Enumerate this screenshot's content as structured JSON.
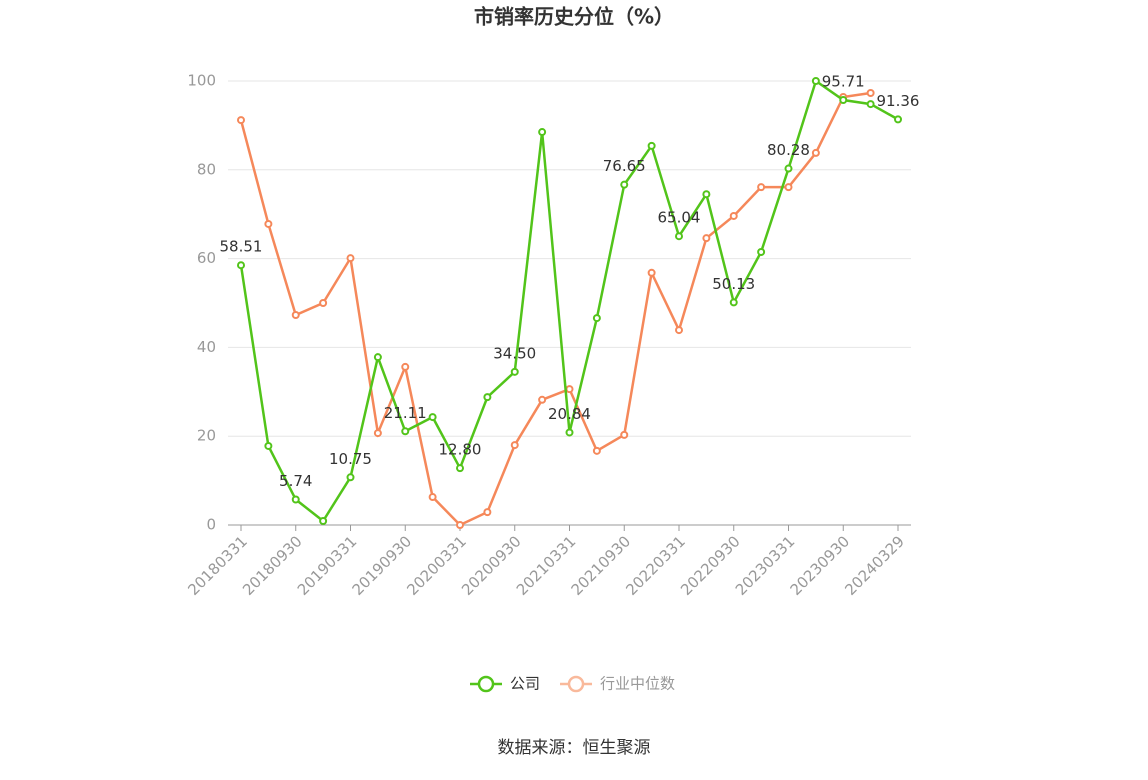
{
  "chart_data": {
    "type": "line",
    "title": "市销率历史分位（%）",
    "source": "数据来源：恒生聚源",
    "categories": [
      "20180331",
      null,
      "20180930",
      null,
      "20190331",
      null,
      "20190930",
      null,
      "20200331",
      null,
      "20200930",
      null,
      "20210331",
      null,
      "20210930",
      null,
      "20220331",
      null,
      "20220930",
      null,
      "20230331",
      null,
      "20230930",
      null,
      "20240329"
    ],
    "series": [
      {
        "name": "公司",
        "color": "#52c41a",
        "values": [
          58.51,
          17.8,
          5.74,
          0.9,
          10.75,
          37.8,
          21.11,
          24.3,
          12.8,
          28.8,
          34.5,
          88.5,
          20.84,
          46.6,
          76.65,
          85.4,
          65.04,
          74.5,
          50.13,
          61.5,
          80.28,
          100,
          95.71,
          94.8,
          91.36
        ],
        "value_labels": [
          "58.51",
          null,
          "5.74",
          null,
          "10.75",
          null,
          "21.11",
          null,
          "12.80",
          null,
          "34.50",
          null,
          "20.84",
          null,
          "76.65",
          null,
          "65.04",
          null,
          "50.13",
          null,
          "80.28",
          null,
          "95.71",
          null,
          "91.36"
        ]
      },
      {
        "name": "行业中位数",
        "color": "#f5885a",
        "values": [
          91.2,
          67.8,
          47.3,
          50.0,
          60.1,
          20.7,
          35.6,
          6.3,
          0,
          2.9,
          18.0,
          28.2,
          30.6,
          16.7,
          20.3,
          56.8,
          43.9,
          64.6,
          69.6,
          76.1,
          76.1,
          83.8,
          96.4,
          97.3,
          null
        ]
      }
    ],
    "ylim": [
      0,
      100
    ],
    "yticks": [
      0,
      20,
      40,
      60,
      80,
      100
    ],
    "grid": true
  }
}
